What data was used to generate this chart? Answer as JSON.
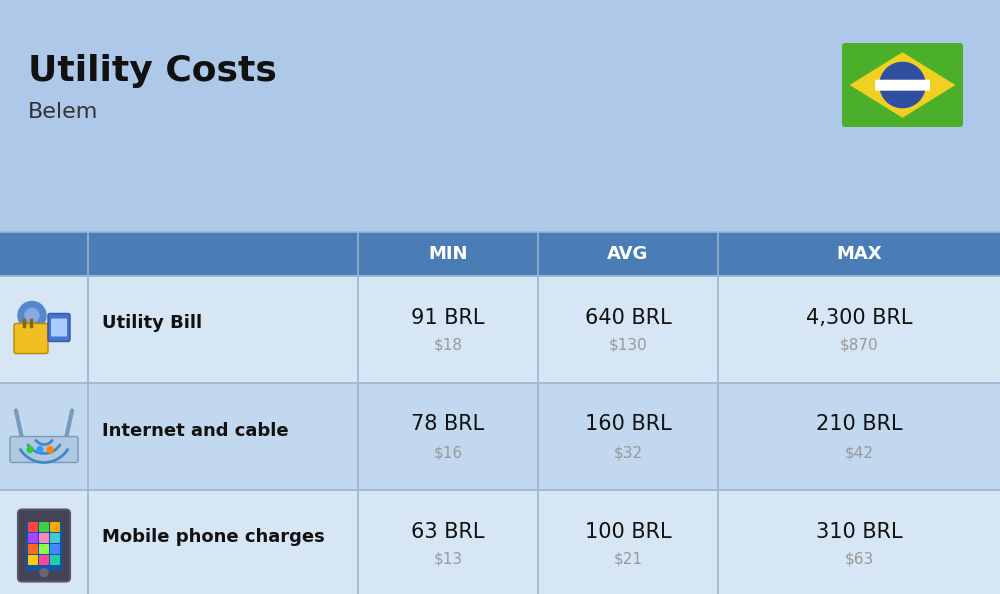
{
  "title": "Utility Costs",
  "subtitle": "Belem",
  "background_color": "#adc8e8",
  "header_bg_color": "#4a7db5",
  "header_text_color": "#ffffff",
  "row_bg_color_1": "#d6e6f5",
  "row_bg_color_2": "#c2d8ee",
  "table_border_color": "#9ab5d0",
  "col_headers": [
    "MIN",
    "AVG",
    "MAX"
  ],
  "rows": [
    {
      "label": "Utility Bill",
      "min_brl": "91 BRL",
      "min_usd": "$18",
      "avg_brl": "640 BRL",
      "avg_usd": "$130",
      "max_brl": "4,300 BRL",
      "max_usd": "$870",
      "icon": "utility"
    },
    {
      "label": "Internet and cable",
      "min_brl": "78 BRL",
      "min_usd": "$16",
      "avg_brl": "160 BRL",
      "avg_usd": "$32",
      "max_brl": "210 BRL",
      "max_usd": "$42",
      "icon": "internet"
    },
    {
      "label": "Mobile phone charges",
      "min_brl": "63 BRL",
      "min_usd": "$13",
      "avg_brl": "100 BRL",
      "avg_usd": "$21",
      "max_brl": "310 BRL",
      "max_usd": "$63",
      "icon": "mobile"
    }
  ],
  "flag_green": "#4caf2a",
  "flag_yellow": "#f0d020",
  "flag_blue": "#2f4fa0",
  "usd_color": "#999999",
  "label_fontsize": 13,
  "header_fontsize": 13,
  "value_fontsize": 15,
  "title_fontsize": 26,
  "subtitle_fontsize": 16,
  "fig_width": 10.0,
  "fig_height": 5.94
}
